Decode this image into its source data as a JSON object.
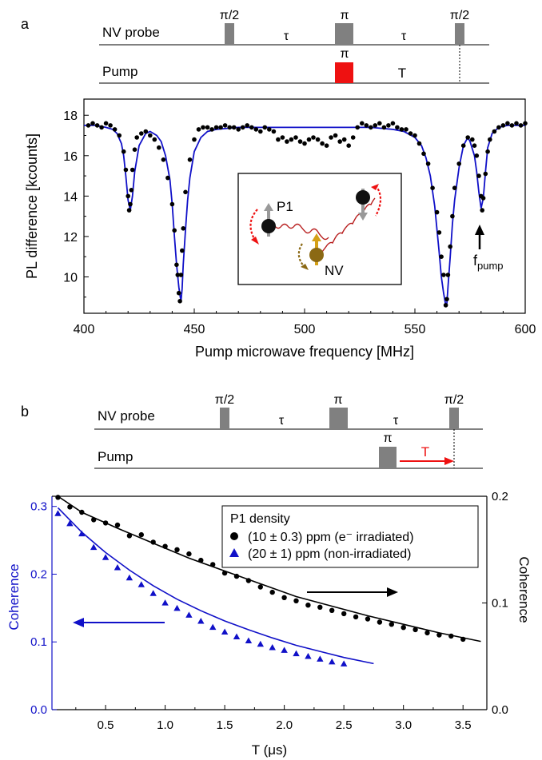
{
  "panel_a": {
    "label": "a",
    "sequence": {
      "probe_label": "NV probe",
      "pump_label": "Pump",
      "pulses_probe": [
        "π/2",
        "π",
        "π/2"
      ],
      "taus": [
        "τ",
        "τ"
      ],
      "pump_pulse": "π",
      "pump_delay": "T"
    },
    "inset": {
      "p1_label": "P1",
      "nv_label": "NV"
    },
    "annotation": {
      "label": "f",
      "sub": "pump"
    }
  },
  "panel_b": {
    "label": "b",
    "sequence": {
      "probe_label": "NV probe",
      "pump_label": "Pump",
      "pulses_probe": [
        "π/2",
        "π",
        "π/2"
      ],
      "taus": [
        "τ",
        "τ"
      ],
      "pump_pulse": "π",
      "pump_delay": "T"
    }
  },
  "colors": {
    "blue": "#1010c8",
    "red": "#ee1111",
    "black": "#000000",
    "gray": "#808080",
    "nv_brown": "#8b6914",
    "nv_gold": "#d4a017"
  },
  "chart_data": [
    {
      "type": "scatter",
      "xlabel": "Pump microwave frequency [MHz]",
      "ylabel": "PL difference [kcounts]",
      "xlim": [
        400,
        600
      ],
      "ylim": [
        8.2,
        18.8
      ],
      "xticks": [
        "400",
        "450",
        "500",
        "550",
        "600"
      ],
      "yticks": [
        "10",
        "12",
        "14",
        "16",
        "18"
      ],
      "series": [
        {
          "kind": "points",
          "x": [
            402,
            404,
            406,
            408,
            410,
            412,
            414,
            416,
            418,
            419,
            420,
            420.5,
            421,
            421.5,
            422,
            423,
            424,
            426,
            428,
            430,
            432,
            434,
            436,
            438,
            440,
            441,
            442,
            442.5,
            443,
            443.5,
            444,
            444.5,
            445,
            446,
            448,
            450,
            452,
            454,
            456,
            458,
            460,
            462,
            464,
            466,
            468,
            470,
            472,
            474,
            476,
            478,
            480,
            482,
            484,
            486,
            488,
            490,
            492,
            494,
            496,
            498,
            500,
            502,
            504,
            506,
            508,
            510,
            512,
            514,
            516,
            518,
            520,
            522,
            524,
            526,
            528,
            530,
            532,
            534,
            536,
            538,
            540,
            542,
            544,
            546,
            548,
            550,
            552,
            554,
            556,
            558,
            560,
            561,
            562,
            563,
            564,
            564.5,
            565,
            566,
            567,
            568,
            570,
            572,
            574,
            576,
            577,
            578,
            579,
            580,
            580.5,
            581,
            582,
            583,
            584,
            586,
            588,
            590,
            592,
            594,
            596,
            598,
            600
          ],
          "y": [
            17.5,
            17.6,
            17.5,
            17.4,
            17.6,
            17.5,
            17.3,
            17.0,
            16.2,
            15.3,
            14.0,
            13.3,
            13.6,
            14.3,
            15.3,
            16.3,
            16.9,
            17.1,
            17.2,
            17.0,
            16.8,
            16.4,
            15.8,
            14.9,
            13.6,
            12.3,
            10.6,
            10.1,
            9.2,
            8.8,
            10.1,
            11.3,
            12.4,
            14.2,
            15.8,
            16.8,
            17.3,
            17.4,
            17.4,
            17.3,
            17.4,
            17.4,
            17.5,
            17.4,
            17.4,
            17.3,
            17.4,
            17.5,
            17.4,
            17.3,
            17.2,
            17.4,
            17.3,
            17.2,
            16.8,
            16.9,
            16.7,
            16.8,
            16.9,
            16.7,
            16.6,
            16.8,
            16.9,
            16.8,
            16.6,
            16.5,
            16.9,
            17.0,
            16.7,
            16.8,
            16.5,
            16.9,
            17.4,
            17.6,
            17.5,
            17.4,
            17.5,
            17.6,
            17.4,
            17.5,
            17.6,
            17.4,
            17.3,
            17.3,
            17.1,
            17.0,
            16.6,
            16.1,
            15.6,
            14.4,
            13.2,
            12.2,
            11.0,
            10.1,
            8.6,
            8.9,
            10.1,
            11.5,
            13.0,
            14.4,
            15.6,
            16.5,
            16.9,
            16.8,
            16.5,
            16.0,
            15.0,
            14.0,
            13.3,
            13.9,
            15.1,
            16.2,
            16.8,
            17.2,
            17.4,
            17.5,
            17.6,
            17.5,
            17.6,
            17.5,
            17.6
          ]
        },
        {
          "kind": "fit",
          "x": [
            400,
            405,
            410,
            413,
            415,
            417,
            418,
            419,
            420,
            421,
            422,
            423,
            425,
            428,
            430,
            433,
            435,
            437,
            439,
            440,
            441,
            442,
            443,
            443.5,
            444,
            444.5,
            445,
            446,
            447,
            448,
            450,
            453,
            456,
            460,
            470,
            480,
            490,
            500,
            510,
            520,
            530,
            540,
            545,
            550,
            553,
            555,
            557,
            559,
            561,
            562,
            563,
            564,
            564.5,
            565,
            566,
            567,
            568,
            570,
            572,
            574,
            575,
            577,
            578,
            579,
            580,
            581,
            582,
            583,
            585,
            588,
            592,
            596,
            600
          ],
          "y": [
            17.5,
            17.5,
            17.4,
            17.3,
            17.1,
            16.6,
            16.0,
            15.0,
            13.8,
            13.3,
            14.0,
            15.2,
            16.5,
            17.1,
            17.2,
            17.0,
            16.7,
            16.0,
            14.8,
            13.6,
            12.0,
            10.6,
            9.5,
            9.1,
            8.8,
            9.4,
            10.6,
            12.3,
            13.8,
            14.9,
            16.2,
            16.9,
            17.2,
            17.3,
            17.4,
            17.4,
            17.4,
            17.4,
            17.4,
            17.4,
            17.4,
            17.3,
            17.2,
            16.9,
            16.5,
            15.9,
            15.0,
            13.5,
            11.2,
            10.0,
            9.2,
            8.6,
            8.7,
            9.5,
            11.0,
            12.6,
            13.8,
            15.4,
            16.5,
            16.9,
            16.7,
            16.0,
            15.2,
            14.2,
            13.4,
            13.9,
            15.2,
            16.4,
            17.1,
            17.4,
            17.5,
            17.5,
            17.5
          ]
        }
      ]
    },
    {
      "type": "scatter",
      "xlabel": "T (μs)",
      "ylabel": "Coherence",
      "y2label": "Coherence",
      "xlim": [
        0.05,
        3.7
      ],
      "ylim": [
        0,
        0.315
      ],
      "y2lim": [
        0,
        0.2
      ],
      "xticks": [
        "0.5",
        "1.0",
        "1.5",
        "2.0",
        "2.5",
        "3.0",
        "3.5"
      ],
      "yticks": [
        "0.0",
        "0.1",
        "0.2",
        "0.3"
      ],
      "y2ticks": [
        "0.0",
        "0.1",
        "0.2"
      ],
      "legend": {
        "title": "P1 density",
        "position": "top-right"
      },
      "series": [
        {
          "name": "(10 ± 0.3) ppm (e⁻ irradiated)",
          "marker": "circle",
          "axis": "right",
          "x": [
            0.1,
            0.2,
            0.3,
            0.4,
            0.5,
            0.6,
            0.7,
            0.8,
            0.9,
            1.0,
            1.1,
            1.2,
            1.3,
            1.4,
            1.5,
            1.6,
            1.7,
            1.8,
            1.9,
            2.0,
            2.1,
            2.2,
            2.3,
            2.4,
            2.5,
            2.6,
            2.7,
            2.8,
            2.9,
            3.0,
            3.1,
            3.2,
            3.3,
            3.4,
            3.5
          ],
          "y": [
            0.199,
            0.19,
            0.185,
            0.178,
            0.175,
            0.173,
            0.163,
            0.164,
            0.157,
            0.153,
            0.15,
            0.146,
            0.14,
            0.136,
            0.128,
            0.125,
            0.121,
            0.115,
            0.11,
            0.105,
            0.102,
            0.098,
            0.096,
            0.093,
            0.09,
            0.087,
            0.085,
            0.082,
            0.08,
            0.077,
            0.075,
            0.072,
            0.07,
            0.069,
            0.066
          ]
        },
        {
          "name": "(20 ± 1) ppm (non-irradiated)",
          "marker": "triangle",
          "axis": "left",
          "x": [
            0.1,
            0.2,
            0.3,
            0.4,
            0.5,
            0.6,
            0.7,
            0.8,
            0.9,
            1.0,
            1.1,
            1.2,
            1.3,
            1.4,
            1.5,
            1.6,
            1.7,
            1.8,
            1.9,
            2.0,
            2.1,
            2.2,
            2.3,
            2.4,
            2.5
          ],
          "y": [
            0.29,
            0.275,
            0.26,
            0.24,
            0.225,
            0.21,
            0.195,
            0.185,
            0.172,
            0.158,
            0.15,
            0.14,
            0.131,
            0.122,
            0.115,
            0.108,
            0.102,
            0.097,
            0.092,
            0.088,
            0.083,
            0.079,
            0.075,
            0.071,
            0.068
          ]
        }
      ],
      "fits": [
        {
          "axis": "right",
          "x": [
            0.1,
            0.3,
            0.6,
            0.9,
            1.2,
            1.5,
            1.8,
            2.1,
            2.4,
            2.7,
            3.0,
            3.3,
            3.65
          ],
          "y": [
            0.2,
            0.185,
            0.17,
            0.156,
            0.142,
            0.13,
            0.118,
            0.106,
            0.097,
            0.088,
            0.08,
            0.072,
            0.064
          ]
        },
        {
          "axis": "left",
          "x": [
            0.1,
            0.3,
            0.5,
            0.7,
            0.9,
            1.1,
            1.3,
            1.5,
            1.7,
            1.9,
            2.1,
            2.3,
            2.5,
            2.75
          ],
          "y": [
            0.298,
            0.262,
            0.232,
            0.206,
            0.183,
            0.163,
            0.146,
            0.131,
            0.118,
            0.106,
            0.095,
            0.086,
            0.077,
            0.068
          ]
        }
      ]
    }
  ]
}
